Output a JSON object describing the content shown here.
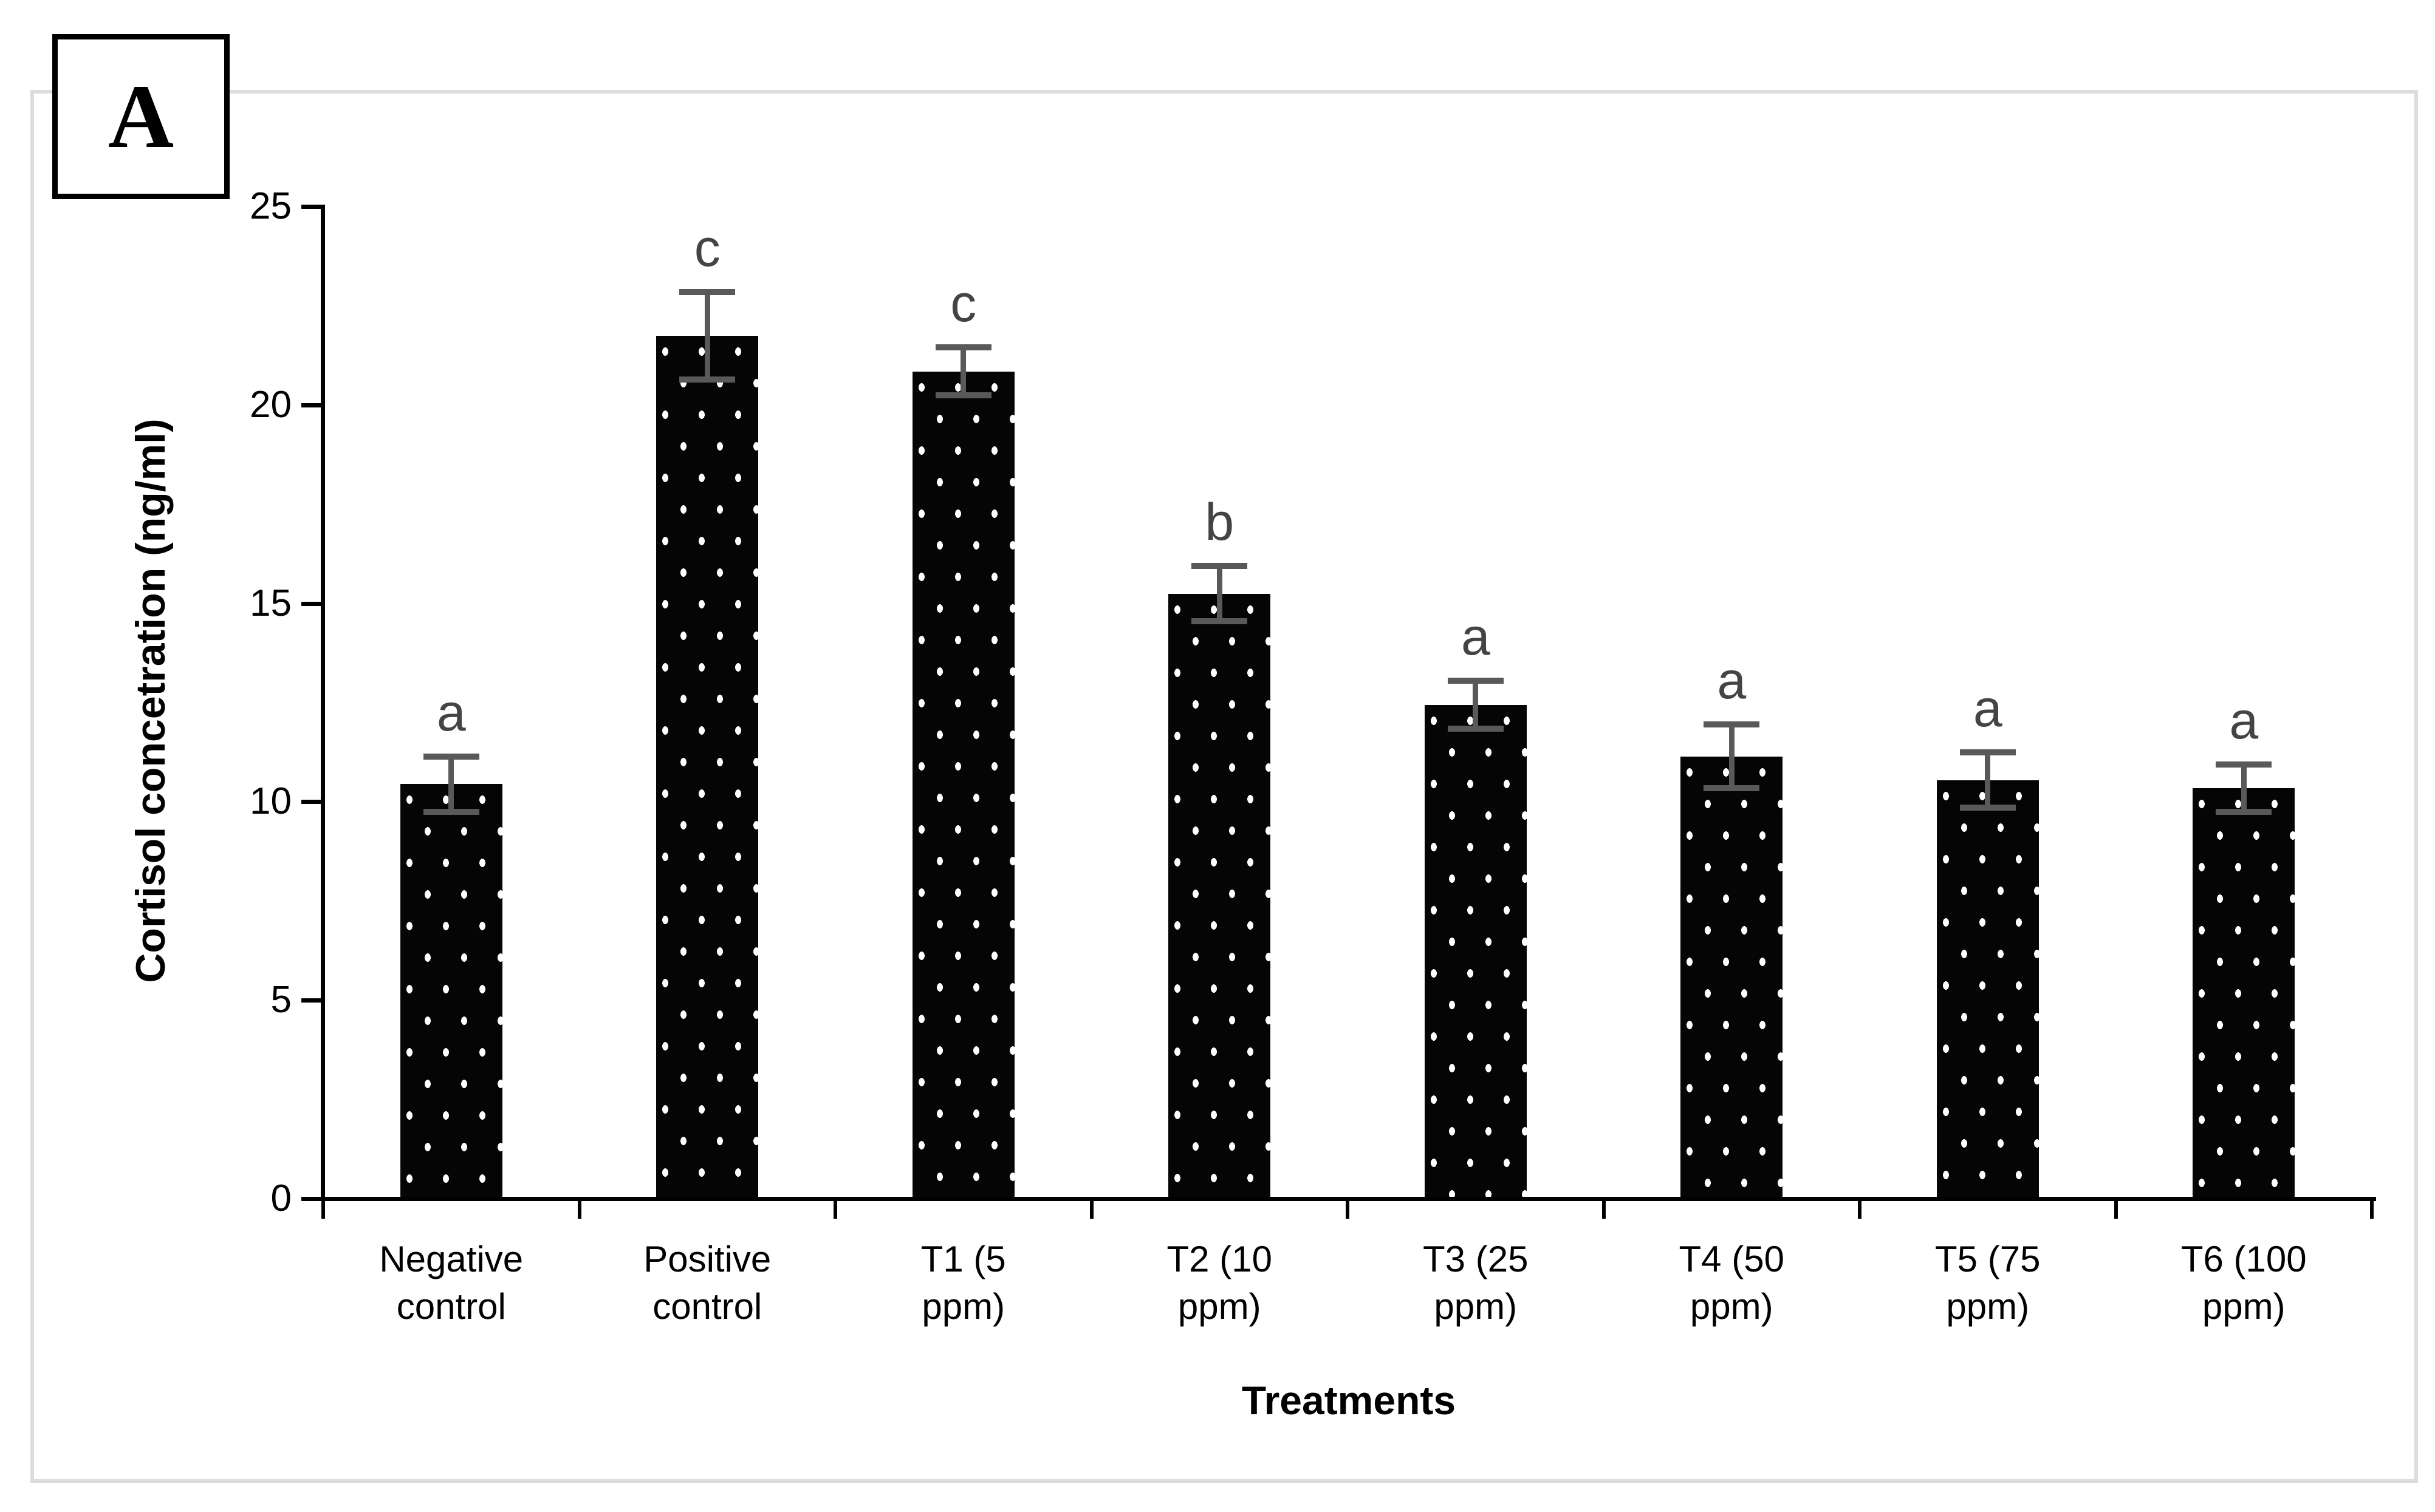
{
  "figure": {
    "panel_label": "A"
  },
  "chart_data": {
    "type": "bar",
    "title": "",
    "xlabel": "Treatments",
    "ylabel": "Cortisol concetration (ng/ml)",
    "ylim": [
      0,
      25
    ],
    "yticks": [
      0,
      5,
      10,
      15,
      20,
      25
    ],
    "grid": false,
    "legend": "none",
    "bar_fill": "#000000",
    "bar_pattern": "staggered-white-dots",
    "error_bar_color": "#595959",
    "sig_letter_color": "#444444",
    "frame_color": "#dcdcdc",
    "categories": [
      "Negative control",
      "Positive control",
      "T1 (5 ppm)",
      "T2 (10 ppm)",
      "T3 (25 ppm)",
      "T4 (50 ppm)",
      "T5 (75 ppm)",
      "T6 (100 ppm)"
    ],
    "category_labels_wrapped": [
      "Negative\ncontrol",
      "Positive\ncontrol",
      "T1 (5\nppm)",
      "T2 (10\nppm)",
      "T3 (25\nppm)",
      "T4 (50\nppm)",
      "T5 (75\nppm)",
      "T6 (100\nppm)"
    ],
    "values": [
      10.4,
      21.7,
      20.8,
      15.2,
      12.4,
      11.1,
      10.5,
      10.3
    ],
    "errors": [
      0.7,
      1.1,
      0.6,
      0.7,
      0.6,
      0.8,
      0.7,
      0.6
    ],
    "sig_letters": [
      "a",
      "c",
      "c",
      "b",
      "a",
      "a",
      "a",
      "a"
    ]
  }
}
